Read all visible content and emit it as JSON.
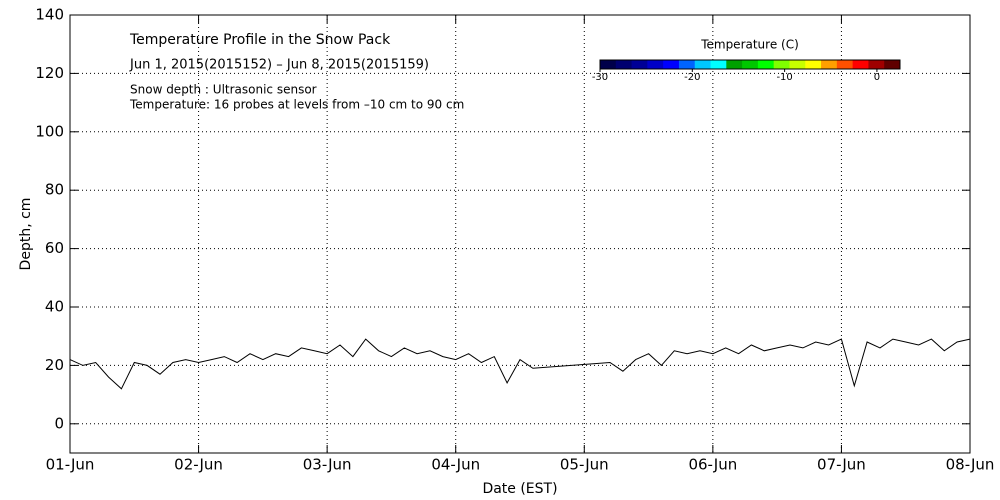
{
  "chart_data": {
    "type": "line",
    "title": "Temperature Profile in the Snow Pack",
    "subtitle": "Jun  1, 2015(2015152) – Jun  8, 2015(2015159)",
    "annotations": [
      "Snow depth : Ultrasonic sensor",
      "Temperature: 16 probes at levels from –10 cm to 90 cm"
    ],
    "xlabel": "Date (EST)",
    "ylabel": "Depth, cm",
    "xlim": [
      0,
      7
    ],
    "xticks": [
      {
        "value": 0,
        "label": "01-Jun"
      },
      {
        "value": 1,
        "label": "02-Jun"
      },
      {
        "value": 2,
        "label": "03-Jun"
      },
      {
        "value": 3,
        "label": "04-Jun"
      },
      {
        "value": 4,
        "label": "05-Jun"
      },
      {
        "value": 5,
        "label": "06-Jun"
      },
      {
        "value": 6,
        "label": "07-Jun"
      },
      {
        "value": 7,
        "label": "08-Jun"
      }
    ],
    "ylim": [
      -10,
      140
    ],
    "yticks": [
      0,
      20,
      40,
      60,
      80,
      100,
      120,
      140
    ],
    "grid": true,
    "series": [
      {
        "name": "Snow depth",
        "color": "#000000",
        "x": [
          0,
          0.1,
          0.2,
          0.3,
          0.4,
          0.5,
          0.6,
          0.7,
          0.8,
          0.9,
          1.0,
          1.1,
          1.2,
          1.3,
          1.4,
          1.5,
          1.6,
          1.7,
          1.8,
          1.9,
          2.0,
          2.1,
          2.2,
          2.3,
          2.4,
          2.5,
          2.6,
          2.7,
          2.8,
          2.9,
          3.0,
          3.1,
          3.2,
          3.3,
          3.4,
          3.5,
          3.6,
          4.2,
          4.3,
          4.4,
          4.5,
          4.6,
          4.7,
          4.8,
          4.9,
          5.0,
          5.1,
          5.2,
          5.3,
          5.4,
          5.5,
          5.6,
          5.7,
          5.8,
          5.9,
          6.0,
          6.1,
          6.2,
          6.3,
          6.4,
          6.5,
          6.6,
          6.7,
          6.8,
          6.9,
          7.0
        ],
        "values": [
          22,
          20,
          21,
          16,
          12,
          21,
          20,
          17,
          21,
          22,
          21,
          22,
          23,
          21,
          24,
          22,
          24,
          23,
          26,
          25,
          24,
          27,
          23,
          29,
          25,
          23,
          26,
          24,
          25,
          23,
          22,
          24,
          21,
          23,
          14,
          22,
          19,
          21,
          18,
          22,
          24,
          20,
          25,
          24,
          25,
          24,
          26,
          24,
          27,
          25,
          26,
          27,
          26,
          28,
          27,
          29,
          13,
          28,
          26,
          29,
          28,
          27,
          29,
          25,
          28,
          29
        ]
      }
    ],
    "colorbar": {
      "title": "Temperature (C)",
      "lim": [
        -30,
        2.5
      ],
      "ticks": [
        -30,
        -20,
        -10,
        0
      ],
      "colors": [
        "#00004a",
        "#000070",
        "#000096",
        "#0000c8",
        "#0000ff",
        "#0064ff",
        "#00c8ff",
        "#00ffff",
        "#00a000",
        "#00c800",
        "#00ff00",
        "#80ff00",
        "#c8ff00",
        "#ffff00",
        "#ffa000",
        "#ff5000",
        "#ff0000",
        "#a00000",
        "#600000"
      ]
    }
  }
}
